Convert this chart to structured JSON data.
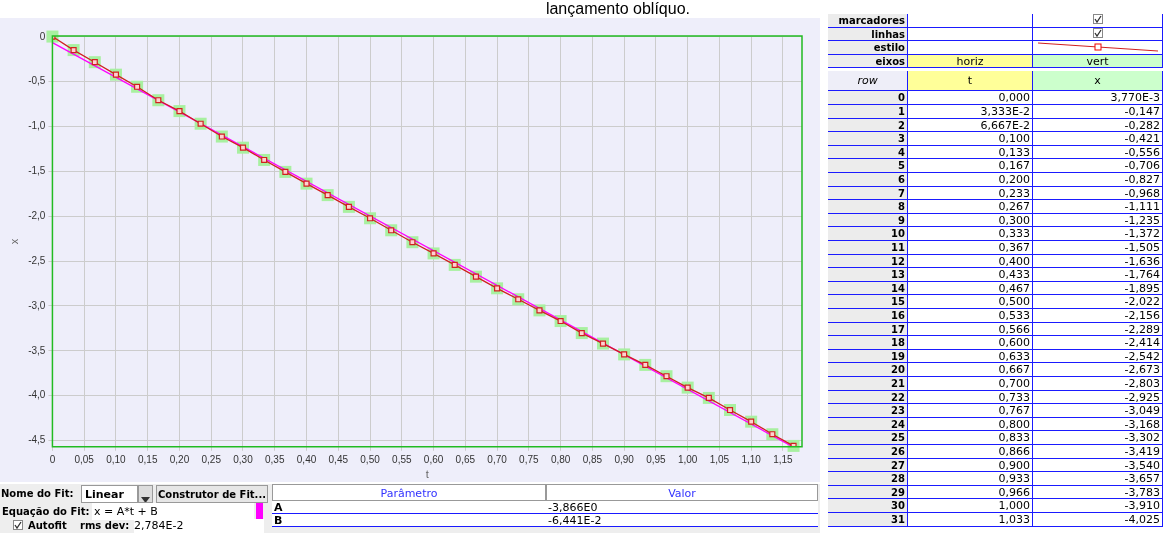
{
  "chart_data": {
    "type": "line",
    "title": "lançamento oblíquo.",
    "xlabel": "t",
    "ylabel": "x",
    "xlim": [
      0,
      1.18
    ],
    "ylim": [
      -4.57,
      0.01
    ],
    "xticks": [
      0,
      {
        "value": 0.05,
        "label": "0,05"
      },
      {
        "value": 0.1,
        "label": "0,10"
      },
      {
        "value": 0.15,
        "label": "0,15"
      },
      {
        "value": 0.2,
        "label": "0,20"
      },
      {
        "value": 0.25,
        "label": "0,25"
      },
      {
        "value": 0.3,
        "label": "0,30"
      },
      {
        "value": 0.35,
        "label": "0,35"
      },
      {
        "value": 0.4,
        "label": "0,40"
      },
      {
        "value": 0.45,
        "label": "0,45"
      },
      {
        "value": 0.5,
        "label": "0,50"
      },
      {
        "value": 0.55,
        "label": "0,55"
      },
      {
        "value": 0.6,
        "label": "0,60"
      },
      {
        "value": 0.65,
        "label": "0,65"
      },
      {
        "value": 0.7,
        "label": "0,70"
      },
      {
        "value": 0.75,
        "label": "0,75"
      },
      {
        "value": 0.8,
        "label": "0,80"
      },
      {
        "value": 0.85,
        "label": "0,85"
      },
      {
        "value": 0.9,
        "label": "0,90"
      },
      {
        "value": 0.95,
        "label": "0,95"
      },
      {
        "value": 1.0,
        "label": "1,00"
      },
      {
        "value": 1.05,
        "label": "1,05"
      },
      {
        "value": 1.1,
        "label": "1,10"
      },
      {
        "value": 1.15,
        "label": "1,15"
      }
    ],
    "yticks": [
      0,
      {
        "value": -0.5,
        "label": "-0,5"
      },
      {
        "value": -1,
        "label": "-1,0"
      },
      {
        "value": -1.5,
        "label": "-1,5"
      },
      {
        "value": -2,
        "label": "-2,0"
      },
      {
        "value": -2.5,
        "label": "-2,5"
      },
      {
        "value": -3,
        "label": "-3,0"
      },
      {
        "value": -3.5,
        "label": "-3,5"
      },
      {
        "value": -4,
        "label": "-4,0"
      },
      {
        "value": -4.5,
        "label": "-4,5"
      }
    ],
    "grid": true,
    "legend": false,
    "series": [
      {
        "color": "#d02020",
        "marker": "square",
        "x": [
          0,
          0.03333,
          0.06667,
          0.1,
          0.1333,
          0.1667,
          0.2,
          0.2333,
          0.2667,
          0.3,
          0.3333,
          0.3667,
          0.4,
          0.4333,
          0.4667,
          0.5,
          0.5333,
          0.5667,
          0.6,
          0.6333,
          0.6667,
          0.7,
          0.7333,
          0.7667,
          0.8,
          0.8333,
          0.8667,
          0.9,
          0.9333,
          0.9667,
          1.0,
          1.0333,
          1.0667,
          1.1,
          1.1333,
          1.1667
        ],
        "values": [
          0.00377,
          -0.147,
          -0.282,
          -0.421,
          -0.556,
          -0.706,
          -0.827,
          -0.968,
          -1.111,
          -1.235,
          -1.372,
          -1.505,
          -1.636,
          -1.764,
          -1.895,
          -2.022,
          -2.156,
          -2.289,
          -2.414,
          -2.542,
          -2.673,
          -2.803,
          -2.925,
          -3.049,
          -3.168,
          -3.302,
          -3.419,
          -3.54,
          -3.657,
          -3.783,
          -3.91,
          -4.025,
          -4.16,
          -4.29,
          -4.43,
          -4.56
        ]
      },
      {
        "color": "#ff00ff",
        "x": [
          0,
          1.165
        ],
        "values": [
          -0.064,
          -4.568
        ]
      }
    ],
    "annotations": [
      "marcadores",
      "linhas",
      "estilo",
      "eixos",
      "horiz",
      "vert",
      "row",
      "t",
      "x",
      "0",
      "0,000",
      "3,770E-3",
      "1",
      "3,333E-2",
      "-0,147",
      "2",
      "6,667E-2",
      "-0,282",
      "3",
      "0,100",
      "-0,421",
      "4",
      "0,133",
      "-0,556",
      "5",
      "0,167",
      "-0,706",
      "6",
      "0,200",
      "-0,827",
      "7",
      "0,233",
      "-0,968",
      "8",
      "0,267",
      "-1,111",
      "9",
      "0,300",
      "-1,235",
      "10",
      "0,333",
      "-1,372",
      "11",
      "0,367",
      "-1,505",
      "12",
      "0,400",
      "-1,636",
      "13",
      "0,433",
      "-1,764",
      "14",
      "0,467",
      "-1,895",
      "15",
      "0,500",
      "-2,022",
      "16",
      "0,533",
      "-2,156",
      "17",
      "0,566",
      "-2,289",
      "18",
      "0,600",
      "-2,414",
      "19",
      "0,633",
      "-2,542",
      "20",
      "0,667",
      "-2,673",
      "21",
      "0,700",
      "-2,803",
      "22",
      "0,733",
      "-2,925",
      "23",
      "0,767",
      "-3,049",
      "24",
      "0,800",
      "-3,168",
      "25",
      "0,833",
      "-3,302",
      "26",
      "0,866",
      "-3,419",
      "27",
      "0,900",
      "-3,540",
      "28",
      "0,933",
      "-3,657",
      "29",
      "0,966",
      "-3,783",
      "30",
      "1,000",
      "-3,910",
      "31",
      "1,033",
      "-4,025",
      "Nome do Fit:",
      "Linear",
      "Construtor de Fit...",
      "Equação do Fit:",
      "x = A*t + B",
      "Autofit",
      "rms dev:",
      "2,784E-2",
      "Parâmetro",
      "Valor",
      "A",
      "-3,866E0",
      "B",
      "-6,441E-2"
    ]
  }
}
